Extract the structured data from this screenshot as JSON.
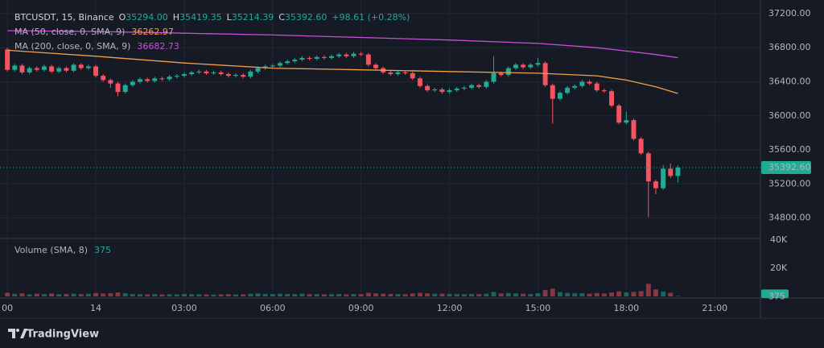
{
  "header": {
    "symbol": "BTCUSDT, 15, Binance",
    "o_label": "O",
    "o_value": "35294.00",
    "h_label": "H",
    "h_value": "35419.35",
    "l_label": "L",
    "l_value": "35214.39",
    "c_label": "C",
    "c_value": "35392.60",
    "change": "+98.61 (+0.28%)"
  },
  "footer": {
    "brand": "TradingView"
  },
  "chart_data": {
    "type": "candlestick",
    "up_color": "#22ab94",
    "down_color": "#f7525f",
    "x": [
      -3,
      -2.75,
      -2.5,
      -2.25,
      -2,
      -1.75,
      -1.5,
      -1.25,
      -1,
      -0.75,
      -0.5,
      -0.25,
      0,
      0.25,
      0.5,
      0.75,
      1,
      1.25,
      1.5,
      1.75,
      2,
      2.25,
      2.5,
      2.75,
      3,
      3.25,
      3.5,
      3.75,
      4,
      4.25,
      4.5,
      4.75,
      5,
      5.25,
      5.5,
      5.75,
      6,
      6.25,
      6.5,
      6.75,
      7,
      7.25,
      7.5,
      7.75,
      8,
      8.25,
      8.5,
      8.75,
      9,
      9.25,
      9.5,
      9.75,
      10,
      10.25,
      10.5,
      10.75,
      11,
      11.25,
      11.5,
      11.75,
      12,
      12.25,
      12.5,
      12.75,
      13,
      13.25,
      13.5,
      13.75,
      14,
      14.25,
      14.5,
      14.75,
      15,
      15.25,
      15.5,
      15.75,
      16,
      16.25,
      16.5,
      16.75,
      17,
      17.25,
      17.5,
      17.75,
      18,
      18.25,
      18.5,
      18.75,
      19,
      19.25,
      19.5,
      19.75
    ],
    "open": [
      36780,
      36540,
      36590,
      36510,
      36560,
      36540,
      36580,
      36520,
      36560,
      36530,
      36600,
      36560,
      36580,
      36470,
      36420,
      36380,
      36280,
      36360,
      36400,
      36430,
      36410,
      36440,
      36430,
      36460,
      36470,
      36490,
      36510,
      36520,
      36500,
      36510,
      36490,
      36470,
      36480,
      36460,
      36520,
      36560,
      36580,
      36590,
      36620,
      36640,
      36660,
      36680,
      36670,
      36690,
      36680,
      36700,
      36720,
      36700,
      36730,
      36720,
      36600,
      36560,
      36510,
      36490,
      36510,
      36500,
      36440,
      36350,
      36300,
      36310,
      36280,
      36300,
      36320,
      36330,
      36360,
      36340,
      36400,
      36500,
      36480,
      36560,
      36600,
      36570,
      36600,
      36620,
      36360,
      36200,
      36270,
      36330,
      36350,
      36400,
      36380,
      36300,
      36290,
      36120,
      35920,
      35950,
      35730,
      35560,
      35230,
      35150,
      35380,
      35294
    ],
    "high": [
      36800,
      36610,
      36610,
      36580,
      36580,
      36600,
      36600,
      36580,
      36580,
      36620,
      36620,
      36600,
      36600,
      36490,
      36440,
      36400,
      36380,
      36420,
      36450,
      36450,
      36460,
      36460,
      36480,
      36490,
      36510,
      36530,
      36540,
      36540,
      36530,
      36530,
      36510,
      36500,
      36500,
      36540,
      36580,
      36600,
      36610,
      36640,
      36660,
      36680,
      36700,
      36700,
      36710,
      36710,
      36720,
      36740,
      36740,
      36750,
      36750,
      36740,
      36620,
      36580,
      36530,
      36530,
      36530,
      36520,
      36460,
      36370,
      36330,
      36330,
      36320,
      36340,
      36350,
      36380,
      36380,
      36420,
      36700,
      36520,
      36580,
      36620,
      36620,
      36620,
      36680,
      36640,
      36380,
      36290,
      36350,
      36370,
      36420,
      36420,
      36400,
      36320,
      36310,
      36140,
      36050,
      35970,
      35750,
      35580,
      35250,
      35420,
      35440,
      35419.35
    ],
    "low": [
      36520,
      36520,
      36490,
      36490,
      36520,
      36520,
      36500,
      36500,
      36510,
      36510,
      36540,
      36540,
      36450,
      36400,
      36330,
      36230,
      36260,
      36340,
      36380,
      36390,
      36390,
      36410,
      36410,
      36440,
      36450,
      36470,
      36490,
      36480,
      36480,
      36470,
      36450,
      36450,
      36440,
      36440,
      36500,
      36540,
      36560,
      36570,
      36600,
      36620,
      36640,
      36650,
      36650,
      36660,
      36660,
      36680,
      36680,
      36680,
      36700,
      36580,
      36540,
      36490,
      36470,
      36470,
      36480,
      36420,
      36330,
      36280,
      36280,
      36260,
      36260,
      36280,
      36300,
      36310,
      36320,
      36320,
      36380,
      36460,
      36460,
      36540,
      36550,
      36550,
      36580,
      36340,
      35910,
      36180,
      36250,
      36310,
      36330,
      36360,
      36280,
      36270,
      36100,
      35900,
      35900,
      35710,
      35540,
      34810,
      35080,
      35130,
      35270,
      35214.39
    ],
    "close": [
      36540,
      36590,
      36510,
      36560,
      36540,
      36580,
      36520,
      36560,
      36530,
      36600,
      36560,
      36580,
      36470,
      36420,
      36380,
      36280,
      36360,
      36400,
      36430,
      36410,
      36440,
      36430,
      36460,
      36470,
      36490,
      36510,
      36520,
      36500,
      36510,
      36490,
      36470,
      36480,
      36460,
      36520,
      36560,
      36580,
      36590,
      36620,
      36640,
      36660,
      36680,
      36670,
      36690,
      36680,
      36700,
      36720,
      36700,
      36730,
      36720,
      36600,
      36560,
      36510,
      36490,
      36510,
      36500,
      36440,
      36350,
      36300,
      36310,
      36280,
      36300,
      36320,
      36330,
      36360,
      36340,
      36400,
      36500,
      36480,
      36560,
      36600,
      36570,
      36600,
      36620,
      36360,
      36200,
      36270,
      36330,
      36350,
      36400,
      36380,
      36300,
      36290,
      36120,
      35920,
      35950,
      35730,
      35560,
      35230,
      35150,
      35380,
      35294,
      35392.6
    ],
    "xlim": [
      -3.25,
      22.55
    ],
    "xticks": [
      {
        "value": -3,
        "label": "00"
      },
      {
        "value": 0,
        "label": "14"
      },
      {
        "value": 3,
        "label": "03:00"
      },
      {
        "value": 6,
        "label": "06:00"
      },
      {
        "value": 9,
        "label": "09:00"
      },
      {
        "value": 12,
        "label": "12:00"
      },
      {
        "value": 15,
        "label": "15:00"
      },
      {
        "value": 18,
        "label": "18:00"
      },
      {
        "value": 21,
        "label": "21:00"
      }
    ],
    "ylim": [
      34570,
      37360
    ],
    "yticks": [
      {
        "value": 37200,
        "label": "37200.00"
      },
      {
        "value": 36800,
        "label": "36800.00"
      },
      {
        "value": 36400,
        "label": "36400.00"
      },
      {
        "value": 36000,
        "label": "36000.00"
      },
      {
        "value": 35600,
        "label": "35600.00"
      },
      {
        "value": 35200,
        "label": "35200.00"
      },
      {
        "value": 34800,
        "label": "34800.00"
      }
    ],
    "grid": true,
    "last_price": {
      "value": 35392.6,
      "label": "35392.60"
    },
    "overlays": [
      {
        "name": "MA (50, close, 0, SMA, 9)",
        "value_label": "36262.97",
        "color": "#f0a04b",
        "x": [
          -3,
          0,
          3,
          6,
          9,
          12,
          15,
          17,
          18,
          19,
          19.75
        ],
        "values": [
          36770,
          36700,
          36620,
          36560,
          36540,
          36520,
          36500,
          36470,
          36420,
          36340,
          36262.97
        ]
      },
      {
        "name": "MA (200, close, 0, SMA, 9)",
        "value_label": "36682.73",
        "color": "#c94fd8",
        "x": [
          -3,
          0,
          3,
          6,
          9,
          12,
          15,
          17,
          18,
          19,
          19.75
        ],
        "values": [
          37000,
          36990,
          36970,
          36950,
          36920,
          36890,
          36850,
          36800,
          36760,
          36720,
          36682.73
        ]
      }
    ],
    "volume": {
      "title": "Volume (SMA, 8)",
      "value_label": "375",
      "ylim": [
        0,
        40600
      ],
      "yticks": [
        {
          "value": 40000,
          "label": "40K"
        },
        {
          "value": 20000,
          "label": "20K"
        }
      ],
      "values": [
        2600,
        1800,
        2200,
        1500,
        1900,
        1700,
        2100,
        1600,
        1800,
        2000,
        1700,
        1900,
        2400,
        2100,
        2300,
        2800,
        2200,
        1800,
        1600,
        1500,
        1700,
        1400,
        1600,
        1500,
        1800,
        1600,
        1500,
        1400,
        1300,
        1500,
        1600,
        1400,
        1500,
        1900,
        2100,
        1800,
        1700,
        1900,
        1800,
        1700,
        2000,
        1600,
        1700,
        1500,
        1600,
        1800,
        1500,
        1700,
        1600,
        2600,
        2200,
        2000,
        1800,
        1700,
        1600,
        2100,
        2500,
        2200,
        1900,
        2000,
        1800,
        1700,
        1600,
        1800,
        1700,
        2000,
        3200,
        2100,
        2400,
        2200,
        1900,
        1800,
        2300,
        4500,
        5500,
        3100,
        2500,
        2200,
        2300,
        2000,
        2400,
        2100,
        2800,
        3600,
        2900,
        3300,
        3800,
        9000,
        5000,
        3400,
        2600,
        375
      ]
    }
  }
}
